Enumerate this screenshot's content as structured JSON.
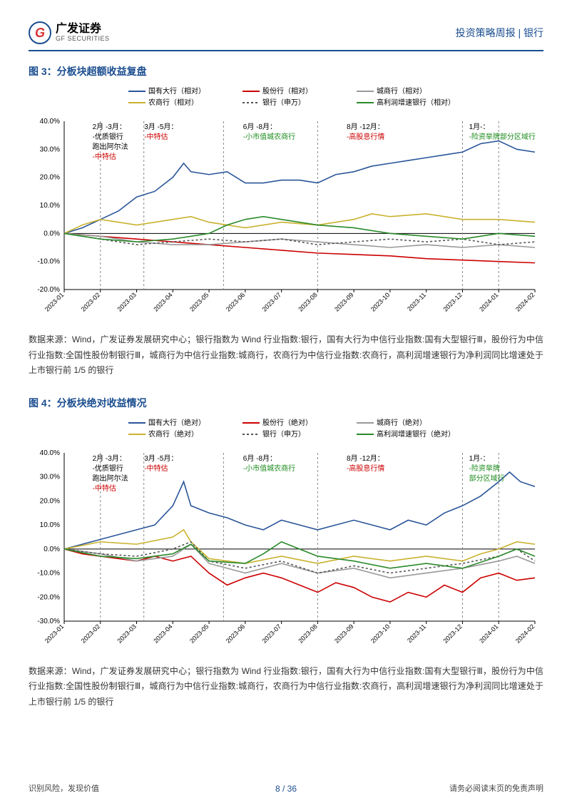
{
  "header": {
    "logo_cn": "广发证券",
    "logo_en": "GF SECURITIES",
    "right": "投资策略周报 | 银行"
  },
  "fig3": {
    "title": "图 3：分板块超额收益复盘",
    "source": "数据来源：Wind，广发证券发展研究中心；银行指数为 Wind 行业指数:银行，国有大行为中信行业指数:国有大型银行Ⅲ，股份行为中信行业指数:全国性股份制银行Ⅲ，城商行为中信行业指数:城商行，农商行为中信行业指数:农商行，高利润增速银行为净利润同比增速处于上市银行前 1/5 的银行"
  },
  "fig4": {
    "title": "图 4：分板块绝对收益情况",
    "source": "数据来源：Wind，广发证券发展研究中心；银行指数为 Wind 行业指数:银行，国有大行为中信行业指数:国有大型银行Ⅲ，股份行为中信行业指数:全国性股份制银行Ⅲ，城商行为中信行业指数:城商行，农商行为中信行业指数:农商行，高利润增速银行为净利润同比增速处于上市银行前 1/5 的银行"
  },
  "legend3": [
    {
      "label": "国有大行（相对）",
      "color": "#2a5599",
      "dash": "0"
    },
    {
      "label": "股份行（相对）",
      "color": "#cc0000",
      "dash": "0"
    },
    {
      "label": "城商行（相对）",
      "color": "#999999",
      "dash": "0"
    },
    {
      "label": "农商行（相对）",
      "color": "#c9b22e",
      "dash": "0"
    },
    {
      "label": "银行（申万）",
      "color": "#555555",
      "dash": "3,3"
    },
    {
      "label": "高利润增速银行（相对）",
      "color": "#2a8a2a",
      "dash": "0"
    }
  ],
  "legend4": [
    {
      "label": "国有大行（绝对）",
      "color": "#2a5599",
      "dash": "0"
    },
    {
      "label": "股份行（绝对）",
      "color": "#cc0000",
      "dash": "0"
    },
    {
      "label": "城商行（绝对）",
      "color": "#999999",
      "dash": "0"
    },
    {
      "label": "农商行（绝对）",
      "color": "#c9b22e",
      "dash": "0"
    },
    {
      "label": "银行（申万）",
      "color": "#555555",
      "dash": "3,3"
    },
    {
      "label": "高利润增速银行（绝对）",
      "color": "#2a8a2a",
      "dash": "0"
    }
  ],
  "xticks": [
    "2023-01",
    "2023-02",
    "2023-03",
    "2023-04",
    "2023-05",
    "2023-06",
    "2023-07",
    "2023-08",
    "2023-09",
    "2023-10",
    "2023-11",
    "2023-12",
    "2024-01",
    "2024-02"
  ],
  "chart3": {
    "ylim": [
      -20,
      40
    ],
    "ystep": 10,
    "vlines": [
      1,
      2.2,
      4.4,
      7,
      11,
      12
    ],
    "annots": [
      {
        "x": 0.06,
        "lines": [
          {
            "t": "2月 -3月：",
            "c": "blk"
          },
          {
            "t": "-优质银行",
            "c": "blk"
          },
          {
            "t": "跑出阿尔法",
            "c": "blk"
          },
          {
            "t": "-中特估",
            "c": "red"
          }
        ]
      },
      {
        "x": 0.17,
        "lines": [
          {
            "t": "3月 -5月：",
            "c": "blk"
          },
          {
            "t": "-中特估",
            "c": "red"
          }
        ]
      },
      {
        "x": 0.38,
        "lines": [
          {
            "t": "6月 -8月：",
            "c": "blk"
          },
          {
            "t": "-小市值城农商行",
            "c": "grn"
          }
        ]
      },
      {
        "x": 0.6,
        "lines": [
          {
            "t": "8月 -12月：",
            "c": "blk"
          },
          {
            "t": "-高股息行情",
            "c": "red"
          }
        ]
      },
      {
        "x": 0.86,
        "lines": [
          {
            "t": "1月-：",
            "c": "blk"
          },
          {
            "t": "-险资举牌部分区域行",
            "c": "grn"
          }
        ]
      }
    ],
    "series": {
      "blue": [
        [
          0,
          0
        ],
        [
          0.5,
          2
        ],
        [
          1,
          5
        ],
        [
          1.5,
          8
        ],
        [
          2,
          13
        ],
        [
          2.5,
          15
        ],
        [
          3,
          20
        ],
        [
          3.3,
          25
        ],
        [
          3.5,
          22
        ],
        [
          4,
          21
        ],
        [
          4.5,
          22
        ],
        [
          5,
          18
        ],
        [
          5.5,
          18
        ],
        [
          6,
          19
        ],
        [
          6.5,
          19
        ],
        [
          7,
          18
        ],
        [
          7.5,
          21
        ],
        [
          8,
          22
        ],
        [
          8.5,
          24
        ],
        [
          9,
          25
        ],
        [
          9.5,
          26
        ],
        [
          10,
          27
        ],
        [
          10.5,
          28
        ],
        [
          11,
          29
        ],
        [
          11.5,
          32
        ],
        [
          12,
          33
        ],
        [
          12.5,
          30
        ],
        [
          13,
          29
        ]
      ],
      "red": [
        [
          0,
          0
        ],
        [
          1,
          -1
        ],
        [
          2,
          -2
        ],
        [
          3,
          -3
        ],
        [
          4,
          -4
        ],
        [
          5,
          -5
        ],
        [
          6,
          -6
        ],
        [
          7,
          -7
        ],
        [
          8,
          -7.5
        ],
        [
          9,
          -8
        ],
        [
          10,
          -9
        ],
        [
          11,
          -9.5
        ],
        [
          12,
          -10
        ],
        [
          13,
          -10.5
        ]
      ],
      "gray": [
        [
          0,
          0
        ],
        [
          1,
          -1
        ],
        [
          2,
          -3
        ],
        [
          3,
          -4
        ],
        [
          4,
          -4
        ],
        [
          5,
          -3
        ],
        [
          6,
          -2
        ],
        [
          7,
          -3
        ],
        [
          8,
          -4
        ],
        [
          9,
          -5
        ],
        [
          10,
          -4
        ],
        [
          11,
          -5
        ],
        [
          12,
          -4
        ],
        [
          13,
          -5
        ]
      ],
      "yellow": [
        [
          0,
          0
        ],
        [
          0.5,
          3
        ],
        [
          1,
          5
        ],
        [
          1.5,
          4
        ],
        [
          2,
          3
        ],
        [
          3,
          5
        ],
        [
          3.5,
          6
        ],
        [
          4,
          4
        ],
        [
          5,
          2
        ],
        [
          6,
          4
        ],
        [
          7,
          3
        ],
        [
          8,
          5
        ],
        [
          8.5,
          7
        ],
        [
          9,
          6
        ],
        [
          10,
          7
        ],
        [
          11,
          5
        ],
        [
          12,
          5
        ],
        [
          13,
          4
        ]
      ],
      "dash": [
        [
          0,
          0
        ],
        [
          1,
          -2
        ],
        [
          2,
          -4
        ],
        [
          3,
          -3
        ],
        [
          4,
          -2
        ],
        [
          5,
          -3
        ],
        [
          6,
          -2
        ],
        [
          7,
          -4
        ],
        [
          8,
          -3
        ],
        [
          9,
          -2
        ],
        [
          10,
          -3
        ],
        [
          11,
          -2
        ],
        [
          12,
          -4
        ],
        [
          13,
          -3
        ]
      ],
      "green": [
        [
          0,
          0
        ],
        [
          1,
          -2
        ],
        [
          2,
          -3
        ],
        [
          3,
          -2
        ],
        [
          4,
          0
        ],
        [
          4.5,
          3
        ],
        [
          5,
          5
        ],
        [
          5.5,
          6
        ],
        [
          6,
          5
        ],
        [
          7,
          3
        ],
        [
          8,
          2
        ],
        [
          9,
          0
        ],
        [
          10,
          -1
        ],
        [
          11,
          -2
        ],
        [
          12,
          0
        ],
        [
          13,
          -1
        ]
      ]
    }
  },
  "chart4": {
    "ylim": [
      -30,
      40
    ],
    "ystep": 10,
    "vlines": [
      1,
      2.2,
      4.4,
      7,
      11,
      12
    ],
    "annots": [
      {
        "x": 0.06,
        "lines": [
          {
            "t": "2月 -3月：",
            "c": "blk"
          },
          {
            "t": "-优质银行",
            "c": "blk"
          },
          {
            "t": "跑出阿尔法",
            "c": "blk"
          },
          {
            "t": "-中特估",
            "c": "red"
          }
        ]
      },
      {
        "x": 0.17,
        "lines": [
          {
            "t": "3月 -5月：",
            "c": "blk"
          },
          {
            "t": "-中特估",
            "c": "red"
          }
        ]
      },
      {
        "x": 0.38,
        "lines": [
          {
            "t": "6月 -8月：",
            "c": "blk"
          },
          {
            "t": "-小市值城农商行",
            "c": "grn"
          }
        ]
      },
      {
        "x": 0.6,
        "lines": [
          {
            "t": "8月 -12月：",
            "c": "blk"
          },
          {
            "t": "-高股息行情",
            "c": "red"
          }
        ]
      },
      {
        "x": 0.86,
        "lines": [
          {
            "t": "1月-：",
            "c": "blk"
          },
          {
            "t": "-险资举牌",
            "c": "grn"
          },
          {
            "t": "部分区域行",
            "c": "grn"
          }
        ]
      }
    ],
    "series": {
      "blue": [
        [
          0,
          0
        ],
        [
          0.5,
          2
        ],
        [
          1,
          4
        ],
        [
          1.5,
          6
        ],
        [
          2,
          8
        ],
        [
          2.5,
          10
        ],
        [
          3,
          18
        ],
        [
          3.3,
          28
        ],
        [
          3.5,
          18
        ],
        [
          4,
          15
        ],
        [
          4.5,
          13
        ],
        [
          5,
          10
        ],
        [
          5.5,
          8
        ],
        [
          6,
          12
        ],
        [
          6.5,
          10
        ],
        [
          7,
          8
        ],
        [
          7.5,
          10
        ],
        [
          8,
          12
        ],
        [
          8.5,
          10
        ],
        [
          9,
          8
        ],
        [
          9.5,
          12
        ],
        [
          10,
          10
        ],
        [
          10.5,
          15
        ],
        [
          11,
          18
        ],
        [
          11.5,
          22
        ],
        [
          12,
          28
        ],
        [
          12.3,
          32
        ],
        [
          12.6,
          28
        ],
        [
          13,
          26
        ]
      ],
      "red": [
        [
          0,
          0
        ],
        [
          0.5,
          -2
        ],
        [
          1,
          -3
        ],
        [
          2,
          -5
        ],
        [
          2.5,
          -3
        ],
        [
          3,
          -5
        ],
        [
          3.5,
          -3
        ],
        [
          4,
          -10
        ],
        [
          4.5,
          -15
        ],
        [
          5,
          -12
        ],
        [
          5.5,
          -10
        ],
        [
          6,
          -12
        ],
        [
          7,
          -18
        ],
        [
          7.5,
          -14
        ],
        [
          8,
          -16
        ],
        [
          8.5,
          -20
        ],
        [
          9,
          -22
        ],
        [
          9.5,
          -18
        ],
        [
          10,
          -20
        ],
        [
          10.5,
          -15
        ],
        [
          11,
          -18
        ],
        [
          11.5,
          -12
        ],
        [
          12,
          -10
        ],
        [
          12.5,
          -13
        ],
        [
          13,
          -12
        ]
      ],
      "gray": [
        [
          0,
          0
        ],
        [
          1,
          -2
        ],
        [
          2,
          -5
        ],
        [
          3,
          -3
        ],
        [
          3.5,
          2
        ],
        [
          4,
          -6
        ],
        [
          5,
          -10
        ],
        [
          6,
          -6
        ],
        [
          7,
          -10
        ],
        [
          8,
          -8
        ],
        [
          9,
          -12
        ],
        [
          10,
          -10
        ],
        [
          11,
          -8
        ],
        [
          12,
          -5
        ],
        [
          12.5,
          -3
        ],
        [
          13,
          -6
        ]
      ],
      "yellow": [
        [
          0,
          0
        ],
        [
          1,
          3
        ],
        [
          2,
          2
        ],
        [
          3,
          5
        ],
        [
          3.3,
          8
        ],
        [
          3.5,
          3
        ],
        [
          4,
          -4
        ],
        [
          5,
          -6
        ],
        [
          6,
          -3
        ],
        [
          7,
          -6
        ],
        [
          8,
          -3
        ],
        [
          9,
          -5
        ],
        [
          10,
          -3
        ],
        [
          11,
          -5
        ],
        [
          11.5,
          -2
        ],
        [
          12,
          0
        ],
        [
          12.5,
          3
        ],
        [
          13,
          2
        ]
      ],
      "dash": [
        [
          0,
          0
        ],
        [
          1,
          -2
        ],
        [
          2,
          -3
        ],
        [
          3,
          0
        ],
        [
          3.5,
          3
        ],
        [
          4,
          -5
        ],
        [
          5,
          -8
        ],
        [
          6,
          -5
        ],
        [
          7,
          -10
        ],
        [
          8,
          -7
        ],
        [
          9,
          -10
        ],
        [
          10,
          -8
        ],
        [
          11,
          -6
        ],
        [
          12,
          -3
        ],
        [
          12.5,
          0
        ],
        [
          13,
          -5
        ]
      ],
      "green": [
        [
          0,
          0
        ],
        [
          1,
          -3
        ],
        [
          2,
          -4
        ],
        [
          3,
          -2
        ],
        [
          3.5,
          2
        ],
        [
          4,
          -5
        ],
        [
          5,
          -6
        ],
        [
          5.5,
          -2
        ],
        [
          6,
          3
        ],
        [
          6.5,
          0
        ],
        [
          7,
          -3
        ],
        [
          8,
          -5
        ],
        [
          9,
          -8
        ],
        [
          10,
          -6
        ],
        [
          11,
          -8
        ],
        [
          12,
          -3
        ],
        [
          12.5,
          0
        ],
        [
          13,
          -3
        ]
      ]
    }
  },
  "footer": {
    "left": "识别风险，发现价值",
    "right": "请务必阅读末页的免责声明",
    "page": "8 / 36"
  }
}
